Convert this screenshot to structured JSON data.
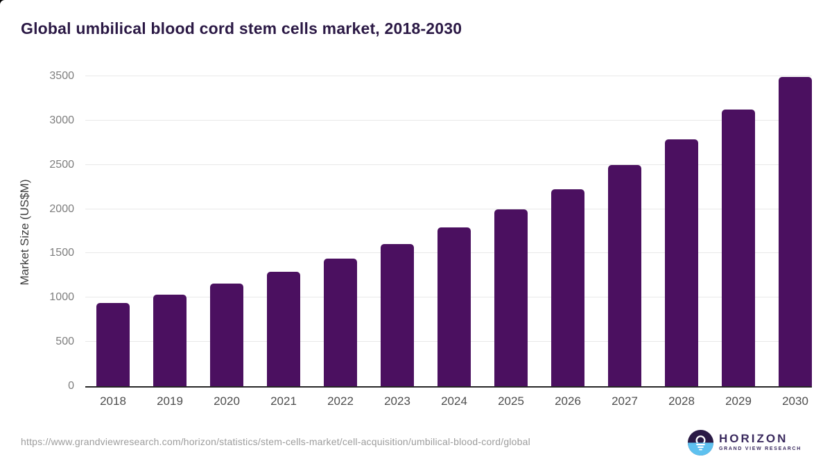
{
  "header": {
    "title": "Global umbilical blood cord stem cells market, 2018-2030"
  },
  "chart_data": {
    "type": "bar",
    "title": "Global umbilical blood cord stem cells market, 2018-2030",
    "categories": [
      "2018",
      "2019",
      "2020",
      "2021",
      "2022",
      "2023",
      "2024",
      "2025",
      "2026",
      "2027",
      "2028",
      "2029",
      "2030"
    ],
    "values": [
      940,
      1035,
      1160,
      1290,
      1440,
      1605,
      1790,
      1995,
      2225,
      2495,
      2790,
      3125,
      3495
    ],
    "xlabel": "",
    "ylabel": "Market Size (US$M)",
    "ylim": [
      0,
      3500
    ],
    "yticks": [
      0,
      500,
      1000,
      1500,
      2000,
      2500,
      3000,
      3500
    ],
    "grid": true,
    "legend": "none",
    "bar_color": "#4b1060"
  },
  "footer": {
    "source_url": "https://www.grandviewresearch.com/horizon/statistics/stem-cells-market/cell-acquisition/umbilical-blood-cord/global",
    "logo": {
      "name": "HORIZON",
      "subtitle": "GRAND VIEW RESEARCH"
    }
  },
  "colors": {
    "bar": "#4b1060",
    "title_text": "#2b1945",
    "axis_line": "#262626",
    "gridline": "#e8e8e8",
    "y_tick_text": "#7d7d7d",
    "x_tick_text": "#4d4d4d",
    "url_text": "#9c9c9c",
    "logo_purple": "#2a1a45",
    "logo_blue": "#5ec1ef",
    "logo_text": "#3a2a5e"
  }
}
